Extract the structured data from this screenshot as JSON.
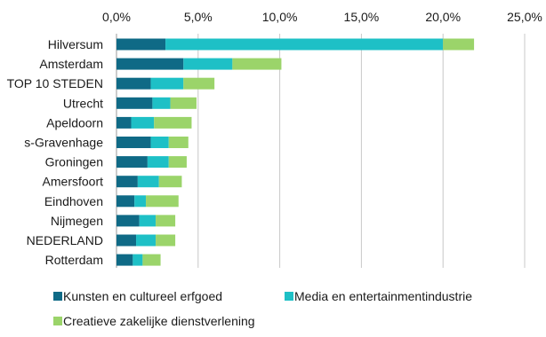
{
  "chart_data": {
    "type": "bar",
    "orientation": "horizontal",
    "stacked": true,
    "title": "",
    "xlabel": "",
    "ylabel": "",
    "categories": [
      "Hilversum",
      "Amsterdam",
      "TOP 10 STEDEN",
      "Utrecht",
      "Apeldoorn",
      "s-Gravenhage",
      "Groningen",
      "Amersfoort",
      "Eindhoven",
      "Nijmegen",
      "NEDERLAND",
      "Rotterdam"
    ],
    "series": [
      {
        "name": "Kunsten en cultureel erfgoed",
        "color": "#0f6a86",
        "values": [
          3.0,
          4.1,
          2.1,
          2.2,
          0.9,
          2.1,
          1.9,
          1.3,
          1.1,
          1.4,
          1.2,
          1.0
        ]
      },
      {
        "name": "Media en entertainmentindustrie",
        "color": "#1ec0c6",
        "values": [
          17.0,
          3.0,
          2.0,
          1.1,
          1.4,
          1.1,
          1.3,
          1.3,
          0.7,
          1.0,
          1.2,
          0.6
        ]
      },
      {
        "name": "Creatieve zakelijke dienstverlening",
        "color": "#9bd46a",
        "values": [
          1.9,
          3.0,
          1.9,
          1.6,
          2.3,
          1.2,
          1.1,
          1.4,
          2.0,
          1.2,
          1.2,
          1.1
        ]
      }
    ],
    "xlim": [
      0,
      25
    ],
    "ticks": [
      0,
      5,
      10,
      15,
      20,
      25
    ],
    "tick_labels": [
      "0,0%",
      "5,0%",
      "10,0%",
      "15,0%",
      "20,0%",
      "25,0%"
    ],
    "grid": true,
    "axis_position": "top",
    "legend_position": "bottom"
  }
}
